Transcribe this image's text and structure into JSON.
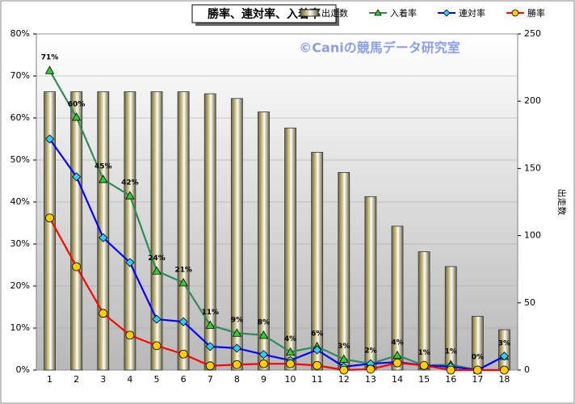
{
  "chart_data": {
    "type": "combo",
    "title": "勝率、連対率、入着率",
    "watermark": "©Caniの競馬データ研究室",
    "y2label": "出走数",
    "categories": [
      "1",
      "2",
      "3",
      "4",
      "5",
      "6",
      "7",
      "8",
      "9",
      "10",
      "11",
      "12",
      "13",
      "14",
      "15",
      "16",
      "17",
      "18"
    ],
    "ylim": [
      0,
      80
    ],
    "yticks": [
      {
        "value": 0,
        "label": "0%"
      },
      {
        "value": 10,
        "label": "10%"
      },
      {
        "value": 20,
        "label": "20%"
      },
      {
        "value": 30,
        "label": "30%"
      },
      {
        "value": 40,
        "label": "40%"
      },
      {
        "value": 50,
        "label": "50%"
      },
      {
        "value": 60,
        "label": "60%"
      },
      {
        "value": 70,
        "label": "70%"
      },
      {
        "value": 80,
        "label": "80%"
      }
    ],
    "y2lim": [
      0,
      250
    ],
    "y2ticks": [
      0,
      50,
      100,
      150,
      200,
      250
    ],
    "series": [
      {
        "name": "出走数",
        "type": "bar",
        "axis": "y2",
        "color": "#e6dca0",
        "values": [
          207,
          207,
          207,
          207,
          207,
          207,
          205.5,
          202,
          192,
          180,
          162,
          147,
          129,
          107,
          88,
          77,
          40,
          30
        ]
      },
      {
        "name": "入着率",
        "type": "line",
        "marker": "triangle",
        "color": "#2e8b57",
        "marker_color": "#33cc33",
        "values": [
          71.3,
          60.2,
          45.4,
          41.5,
          23.6,
          20.8,
          10.7,
          8.8,
          8.3,
          4.3,
          5.6,
          2.6,
          1.5,
          3.5,
          1.1,
          1.3,
          0,
          3.3
        ],
        "value_labels": [
          "71%",
          "60%",
          "45%",
          "42%",
          "24%",
          "21%",
          "11%",
          "9%",
          "8%",
          "4%",
          "6%",
          "3%",
          "2%",
          "4%",
          "1%",
          "1%",
          "0%",
          "3%"
        ]
      },
      {
        "name": "連対率",
        "type": "line",
        "marker": "diamond",
        "color": "#0000ff",
        "marker_color": "#33ccff",
        "values": [
          55.0,
          46.0,
          31.5,
          25.6,
          12.1,
          11.5,
          5.6,
          5.2,
          3.7,
          2.3,
          4.8,
          0.8,
          1.5,
          1.9,
          1.1,
          0.8,
          0,
          3.3
        ]
      },
      {
        "name": "勝率",
        "type": "line",
        "marker": "circle",
        "color": "#ff0000",
        "marker_color": "#ffcc00",
        "values": [
          36.2,
          24.6,
          13.5,
          8.3,
          5.8,
          3.8,
          1.0,
          1.3,
          1.5,
          1.5,
          1.1,
          0,
          0.2,
          1.7,
          1.1,
          0,
          0,
          0
        ]
      }
    ]
  }
}
